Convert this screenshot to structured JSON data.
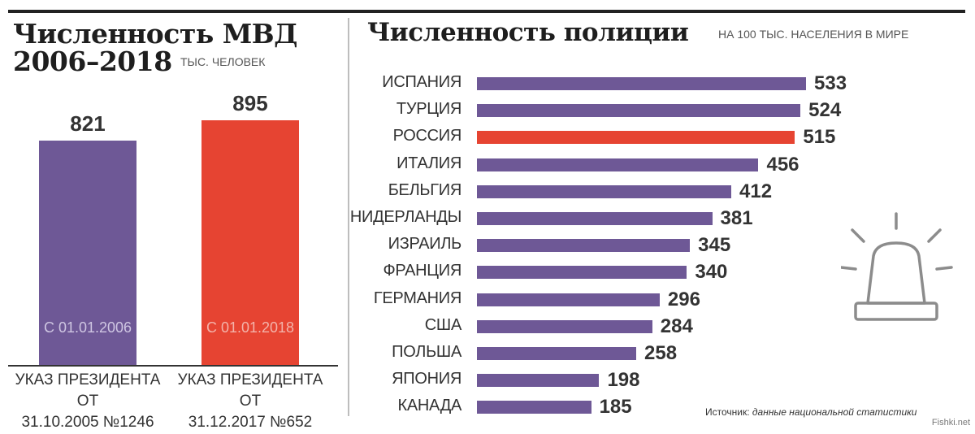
{
  "left_chart": {
    "title_line1": "Численность МВД",
    "title_line2": "2006–2018",
    "subtitle": "ТЫС. ЧЕЛОВЕК",
    "chart_data": {
      "type": "bar",
      "categories": [
        "С 01.01.2006",
        "С 01.01.2018"
      ],
      "values": [
        821,
        895
      ],
      "value_labels": [
        "821",
        "895"
      ],
      "captions": [
        [
          "УКАЗ ПРЕЗИДЕНТА ОТ",
          "31.10.2005 №1246"
        ],
        [
          "УКАЗ ПРЕЗИДЕНТА ОТ",
          "31.12.2017 №652"
        ]
      ],
      "colors": [
        "#6e5896",
        "#e64432"
      ],
      "ylim": [
        0,
        895
      ]
    }
  },
  "right_chart": {
    "title": "Численность полиции",
    "subtitle": "НА 100 ТЫС. НАСЕЛЕНИЯ В МИРЕ",
    "chart_data": {
      "type": "bar",
      "orientation": "horizontal",
      "categories": [
        "ИСПАНИЯ",
        "ТУРЦИЯ",
        "РОССИЯ",
        "ИТАЛИЯ",
        "БЕЛЬГИЯ",
        "НИДЕРЛАНДЫ",
        "ИЗРАИЛЬ",
        "ФРАНЦИЯ",
        "ГЕРМАНИЯ",
        "США",
        "ПОЛЬША",
        "ЯПОНИЯ",
        "КАНАДА"
      ],
      "values": [
        533,
        524,
        515,
        456,
        412,
        381,
        345,
        340,
        296,
        284,
        258,
        198,
        185
      ],
      "highlight": "РОССИЯ",
      "colors": {
        "default": "#6e5896",
        "highlight": "#e64432"
      },
      "xlim": [
        0,
        533
      ]
    }
  },
  "source": {
    "label": "Источник:",
    "text": "данные национальной статистики"
  },
  "watermark": "Fishki.net",
  "icons": {
    "decoration": "siren-icon"
  }
}
